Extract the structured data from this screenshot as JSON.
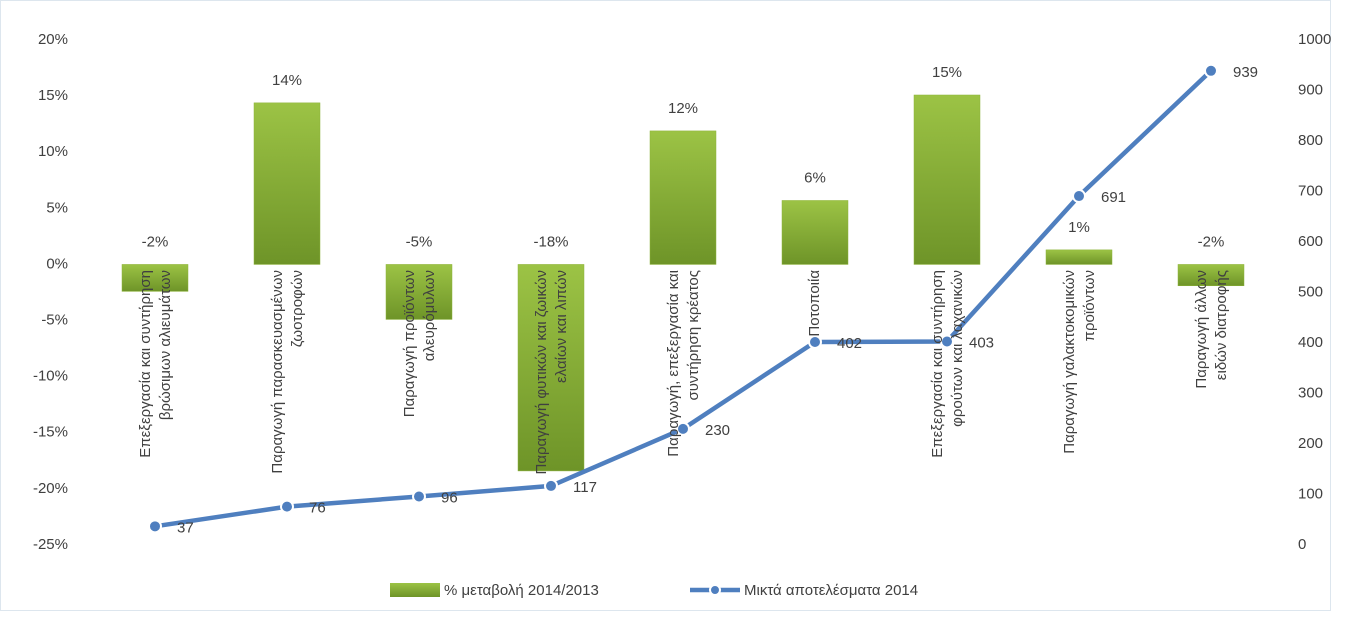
{
  "chart_data": {
    "type": "combo",
    "categories": [
      "Επεξεργασία και συντήρηση βρώσιμων αλιευμάτων",
      "Παραγωγή παρασκευασμένων ζωοτροφών",
      "Παραγωγή προϊόντων αλευρόμυλων",
      "Παραγωγή φυτικών και ζωικών ελαίων και λιπών",
      "Παραγωγή, επεξεργασία και συντήρηση κρέατος",
      "Ποτοποιία",
      "Επεξεργασία και συντήρηση φρούτων και λαχανικών",
      "Παραγωγή γαλακτοκομικών προϊόντων",
      "Παραγωγή άλλων ειδών διατροφής"
    ],
    "series": [
      {
        "name": "% μεταβολή 2014/2013",
        "type": "bar",
        "color": "#8db33a",
        "values": [
          -2.4,
          14.4,
          -4.9,
          -18.4,
          11.9,
          5.7,
          15.1,
          1.3,
          -1.9
        ],
        "value_labels": [
          "-2%",
          "14%",
          "-5%",
          "-18%",
          "12%",
          "6%",
          "15%",
          "1%",
          "-2%"
        ]
      },
      {
        "name": "Μικτά αποτελέσματα 2014",
        "type": "line",
        "axis": "y2",
        "color": "#4f7fbf",
        "values": [
          37,
          76,
          96,
          117,
          230,
          402,
          403,
          691,
          939
        ]
      }
    ],
    "ylim": [
      -25,
      20
    ],
    "yticks": [
      {
        "value": -25,
        "label": "-25%"
      },
      {
        "value": -20,
        "label": "-20%"
      },
      {
        "value": -15,
        "label": "-15%"
      },
      {
        "value": -10,
        "label": "-10%"
      },
      {
        "value": -5,
        "label": "-5%"
      },
      {
        "value": 0,
        "label": "0%"
      },
      {
        "value": 5,
        "label": "5%"
      },
      {
        "value": 10,
        "label": "10%"
      },
      {
        "value": 15,
        "label": "15%"
      },
      {
        "value": 20,
        "label": "20%"
      }
    ],
    "y2lim": [
      0,
      1000
    ],
    "y2ticks": [
      0,
      100,
      200,
      300,
      400,
      500,
      600,
      700,
      800,
      900,
      1000
    ],
    "legend": "bottom"
  }
}
